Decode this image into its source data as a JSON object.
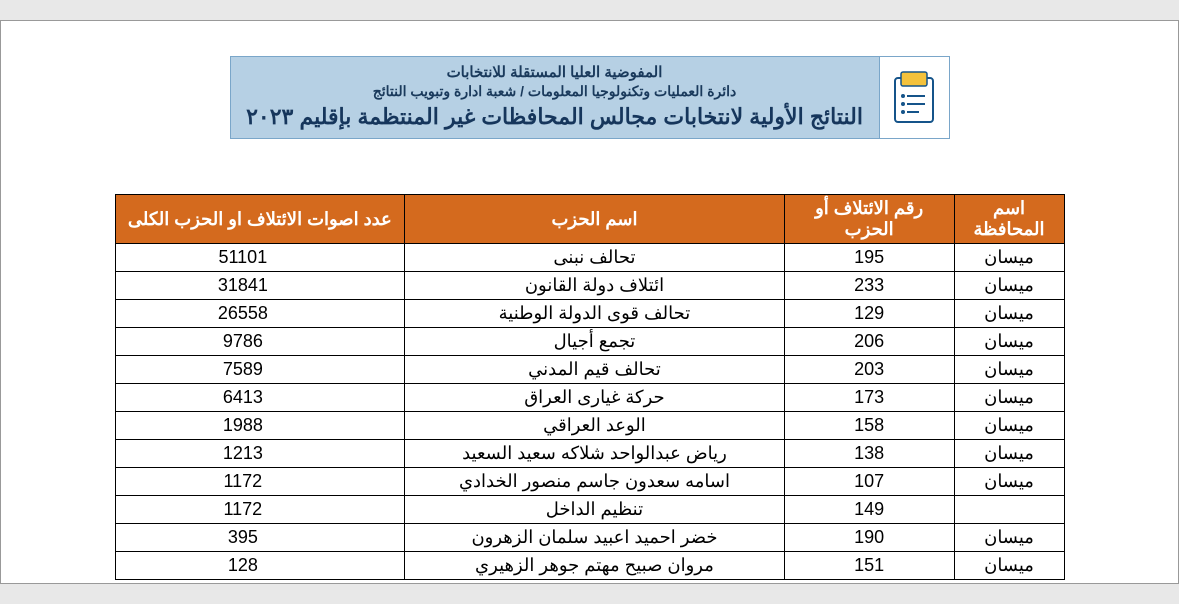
{
  "header": {
    "org": "المفوضية العليا المستقلة للانتخابات",
    "dept": "دائرة العمليات وتكنولوجيا المعلومات / شعبة ادارة وتبويب النتائج",
    "title": "النتائج الأولية لانتخابات مجالس المحافظات غير المنتظمة بإقليم ٢٠٢٣",
    "band_bg": "#b6d0e4",
    "band_border": "#7aa6c9",
    "text_color": "#16365c"
  },
  "table": {
    "header_bg": "#d46a1e",
    "header_fg": "#ffffff",
    "columns": {
      "province": "اسم المحافظة",
      "coalition_no": "رقم الائتلاف أو الحزب",
      "party_name": "اسم الحزب",
      "total_votes": "عدد اصوات الائتلاف او الحزب الكلى"
    },
    "rows": [
      {
        "province": "ميسان",
        "coalition_no": "195",
        "party_name": "تحالف نبنى",
        "total_votes": "51101"
      },
      {
        "province": "ميسان",
        "coalition_no": "233",
        "party_name": "ائتلاف دولة القانون",
        "total_votes": "31841"
      },
      {
        "province": "ميسان",
        "coalition_no": "129",
        "party_name": "تحالف قوى الدولة الوطنية",
        "total_votes": "26558"
      },
      {
        "province": "ميسان",
        "coalition_no": "206",
        "party_name": "تجمع أجيال",
        "total_votes": "9786"
      },
      {
        "province": "ميسان",
        "coalition_no": "203",
        "party_name": "تحالف قيم المدني",
        "total_votes": "7589"
      },
      {
        "province": "ميسان",
        "coalition_no": "173",
        "party_name": "حركة غيارى العراق",
        "total_votes": "6413"
      },
      {
        "province": "ميسان",
        "coalition_no": "158",
        "party_name": "الوعد العراقي",
        "total_votes": "1988"
      },
      {
        "province": "ميسان",
        "coalition_no": "138",
        "party_name": "رياض عبدالواحد شلاكه سعيد السعيد",
        "total_votes": "1213"
      },
      {
        "province": "ميسان",
        "coalition_no": "107",
        "party_name": "اسامه سعدون جاسم منصور الخدادي",
        "total_votes": "1172"
      },
      {
        "province": "",
        "coalition_no": "149",
        "party_name": "تنظيم الداخل",
        "total_votes": "1172"
      },
      {
        "province": "ميسان",
        "coalition_no": "190",
        "party_name": "خضر احميد اعبيد سلمان الزهرون",
        "total_votes": "395"
      },
      {
        "province": "ميسان",
        "coalition_no": "151",
        "party_name": "مروان صبيح مهتم جوهر الزهيري",
        "total_votes": "128"
      }
    ]
  }
}
